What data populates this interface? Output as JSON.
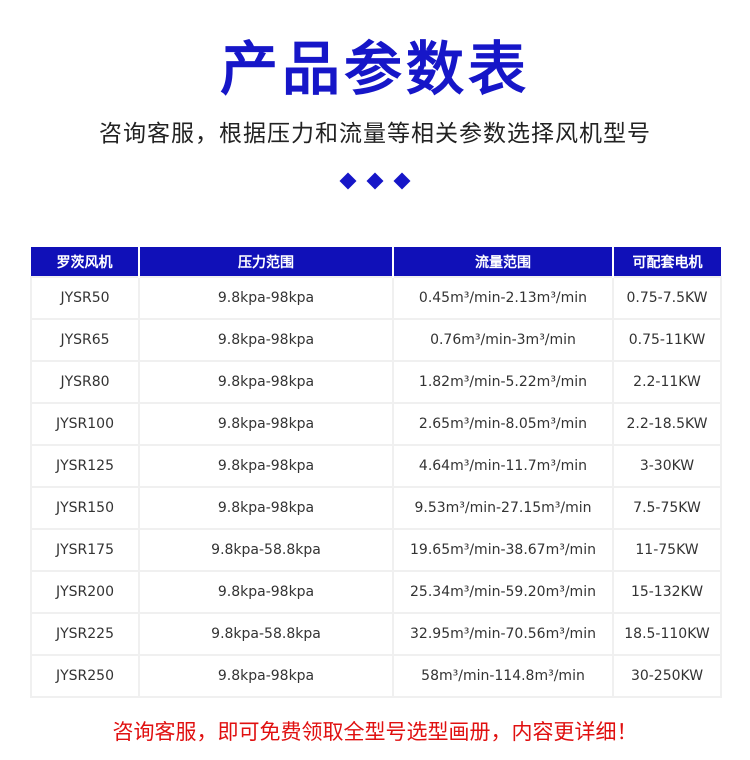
{
  "title": "产品参数表",
  "subtitle": "咨询客服，根据压力和流量等相关参数选择风机型号",
  "accent_color": "#1616c8",
  "table": {
    "headers": [
      "罗茨风机",
      "压力范围",
      "流量范围",
      "可配套电机"
    ],
    "rows": [
      [
        "JYSR50",
        "9.8kpa-98kpa",
        "0.45m³/min-2.13m³/min",
        "0.75-7.5KW"
      ],
      [
        "JYSR65",
        "9.8kpa-98kpa",
        "0.76m³/min-3m³/min",
        "0.75-11KW"
      ],
      [
        "JYSR80",
        "9.8kpa-98kpa",
        "1.82m³/min-5.22m³/min",
        "2.2-11KW"
      ],
      [
        "JYSR100",
        "9.8kpa-98kpa",
        "2.65m³/min-8.05m³/min",
        "2.2-18.5KW"
      ],
      [
        "JYSR125",
        "9.8kpa-98kpa",
        "4.64m³/min-11.7m³/min",
        "3-30KW"
      ],
      [
        "JYSR150",
        "9.8kpa-98kpa",
        "9.53m³/min-27.15m³/min",
        "7.5-75KW"
      ],
      [
        "JYSR175",
        "9.8kpa-58.8kpa",
        "19.65m³/min-38.67m³/min",
        "11-75KW"
      ],
      [
        "JYSR200",
        "9.8kpa-98kpa",
        "25.34m³/min-59.20m³/min",
        "15-132KW"
      ],
      [
        "JYSR225",
        "9.8kpa-58.8kpa",
        "32.95m³/min-70.56m³/min",
        "18.5-110KW"
      ],
      [
        "JYSR250",
        "9.8kpa-98kpa",
        "58m³/min-114.8m³/min",
        "30-250KW"
      ]
    ]
  },
  "footer": "咨询客服，即可免费领取全型号选型画册，内容更详细！"
}
